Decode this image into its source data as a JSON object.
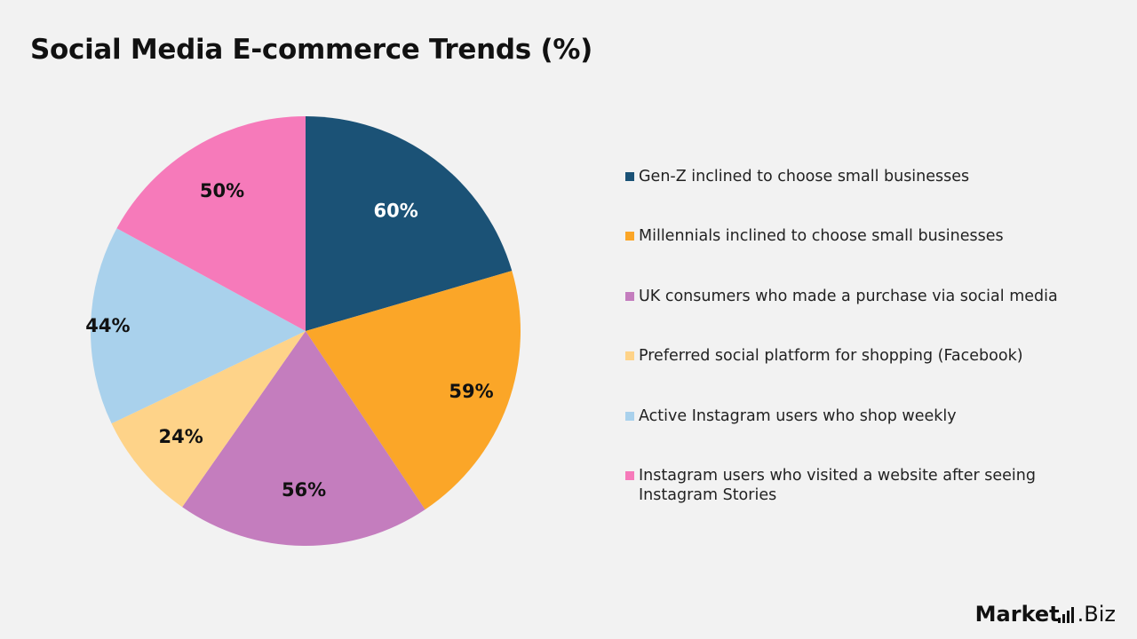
{
  "chart_data": {
    "type": "pie",
    "title": "Social Media E-commerce Trends (%)",
    "slices": [
      {
        "label": "Gen-Z inclined to choose small businesses",
        "value": 60,
        "value_label": "60%",
        "color": "#1b5276",
        "label_color": "#ffffff"
      },
      {
        "label": "Millennials inclined to choose small businesses",
        "value": 59,
        "value_label": "59%",
        "color": "#fba628",
        "label_color": "#111111"
      },
      {
        "label": "UK consumers who made a purchase via social media",
        "value": 56,
        "value_label": "56%",
        "color": "#c47dbe",
        "label_color": "#111111"
      },
      {
        "label": "Preferred social platform for shopping (Facebook)",
        "value": 24,
        "value_label": "24%",
        "color": "#fed389",
        "label_color": "#111111"
      },
      {
        "label": "Active Instagram users who shop weekly",
        "value": 44,
        "value_label": "44%",
        "color": "#a9d1ec",
        "label_color": "#111111"
      },
      {
        "label": "Instagram users who visited a website after seeing Instagram Stories",
        "value": 50,
        "value_label": "50%",
        "color": "#f67aba",
        "label_color": "#111111"
      }
    ],
    "legend_position": "right"
  },
  "brand": {
    "logo_part1": "Market",
    "logo_part2": ".Biz"
  }
}
